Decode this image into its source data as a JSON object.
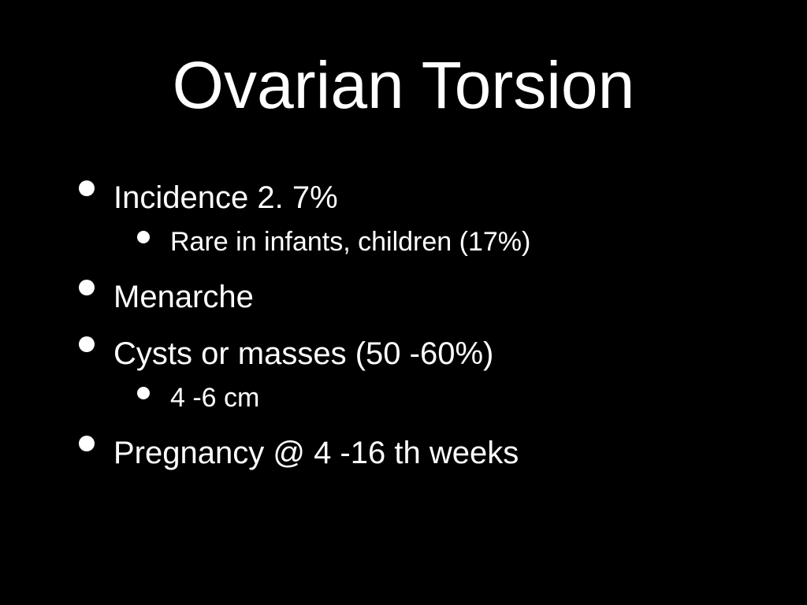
{
  "slide": {
    "title": "Ovarian Torsion",
    "background_color": "#000000",
    "text_color": "#ffffff",
    "title_fontsize": 84,
    "l1_fontsize": 40,
    "l2_fontsize": 34,
    "bullets": [
      {
        "level": 1,
        "text": "Incidence 2. 7%",
        "children": [
          {
            "level": 2,
            "text": "Rare in infants, children (17%)"
          }
        ]
      },
      {
        "level": 1,
        "text": "Menarche",
        "children": []
      },
      {
        "level": 1,
        "text": "Cysts or masses (50 -60%)",
        "children": [
          {
            "level": 2,
            "text": "4 -6 cm"
          }
        ]
      },
      {
        "level": 1,
        "text": "Pregnancy @ 4 -16 th weeks",
        "children": []
      }
    ]
  }
}
